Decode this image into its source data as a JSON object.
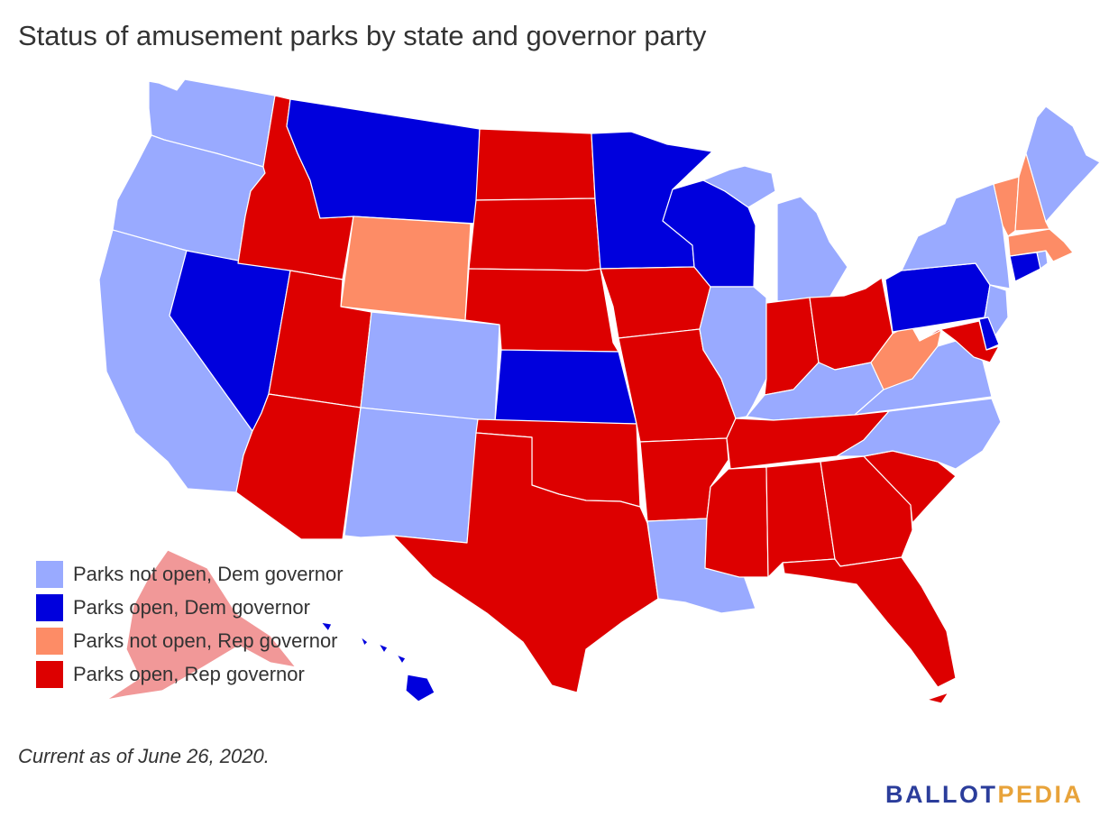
{
  "title": "Status of amusement parks by state and governor party",
  "categories": [
    {
      "key": "not_open_dem",
      "label": "Parks not open, Dem governor",
      "color": "#99aaff"
    },
    {
      "key": "open_dem",
      "label": "Parks open, Dem governor",
      "color": "#0000dd"
    },
    {
      "key": "not_open_rep",
      "label": "Parks not open, Rep governor",
      "color": "#fd8c66"
    },
    {
      "key": "open_rep",
      "label": "Parks open, Rep governor",
      "color": "#dd0000"
    }
  ],
  "states": {
    "WA": "not_open_dem",
    "OR": "not_open_dem",
    "CA": "not_open_dem",
    "NV": "open_dem",
    "ID": "open_rep",
    "MT": "open_dem",
    "WY": "not_open_rep",
    "UT": "open_rep",
    "CO": "not_open_dem",
    "AZ": "open_rep",
    "NM": "not_open_dem",
    "ND": "open_rep",
    "SD": "open_rep",
    "NE": "open_rep",
    "KS": "open_dem",
    "OK": "open_rep",
    "TX": "open_rep",
    "MN": "open_dem",
    "IA": "open_rep",
    "MO": "open_rep",
    "AR": "open_rep",
    "LA": "not_open_dem",
    "WI": "open_dem",
    "IL": "not_open_dem",
    "MI": "not_open_dem",
    "IN": "open_rep",
    "OH": "open_rep",
    "KY": "not_open_dem",
    "TN": "open_rep",
    "MS": "open_rep",
    "AL": "open_rep",
    "GA": "open_rep",
    "FL": "open_rep",
    "SC": "open_rep",
    "NC": "not_open_dem",
    "VA": "not_open_dem",
    "WV": "not_open_rep",
    "PA": "open_dem",
    "NY": "not_open_dem",
    "NJ": "not_open_dem",
    "DE": "open_dem",
    "MD": "open_rep",
    "CT": "open_dem",
    "RI": "not_open_dem",
    "MA": "not_open_rep",
    "VT": "not_open_rep",
    "NH": "not_open_rep",
    "ME": "not_open_dem",
    "HI": "open_dem",
    "AK": "open_rep"
  },
  "note": "Current as of June 26, 2020.",
  "logo": {
    "part1": "BALLOT",
    "part2": "PEDIA",
    "color1": "#2b3d9b",
    "color2": "#e8a33a"
  }
}
